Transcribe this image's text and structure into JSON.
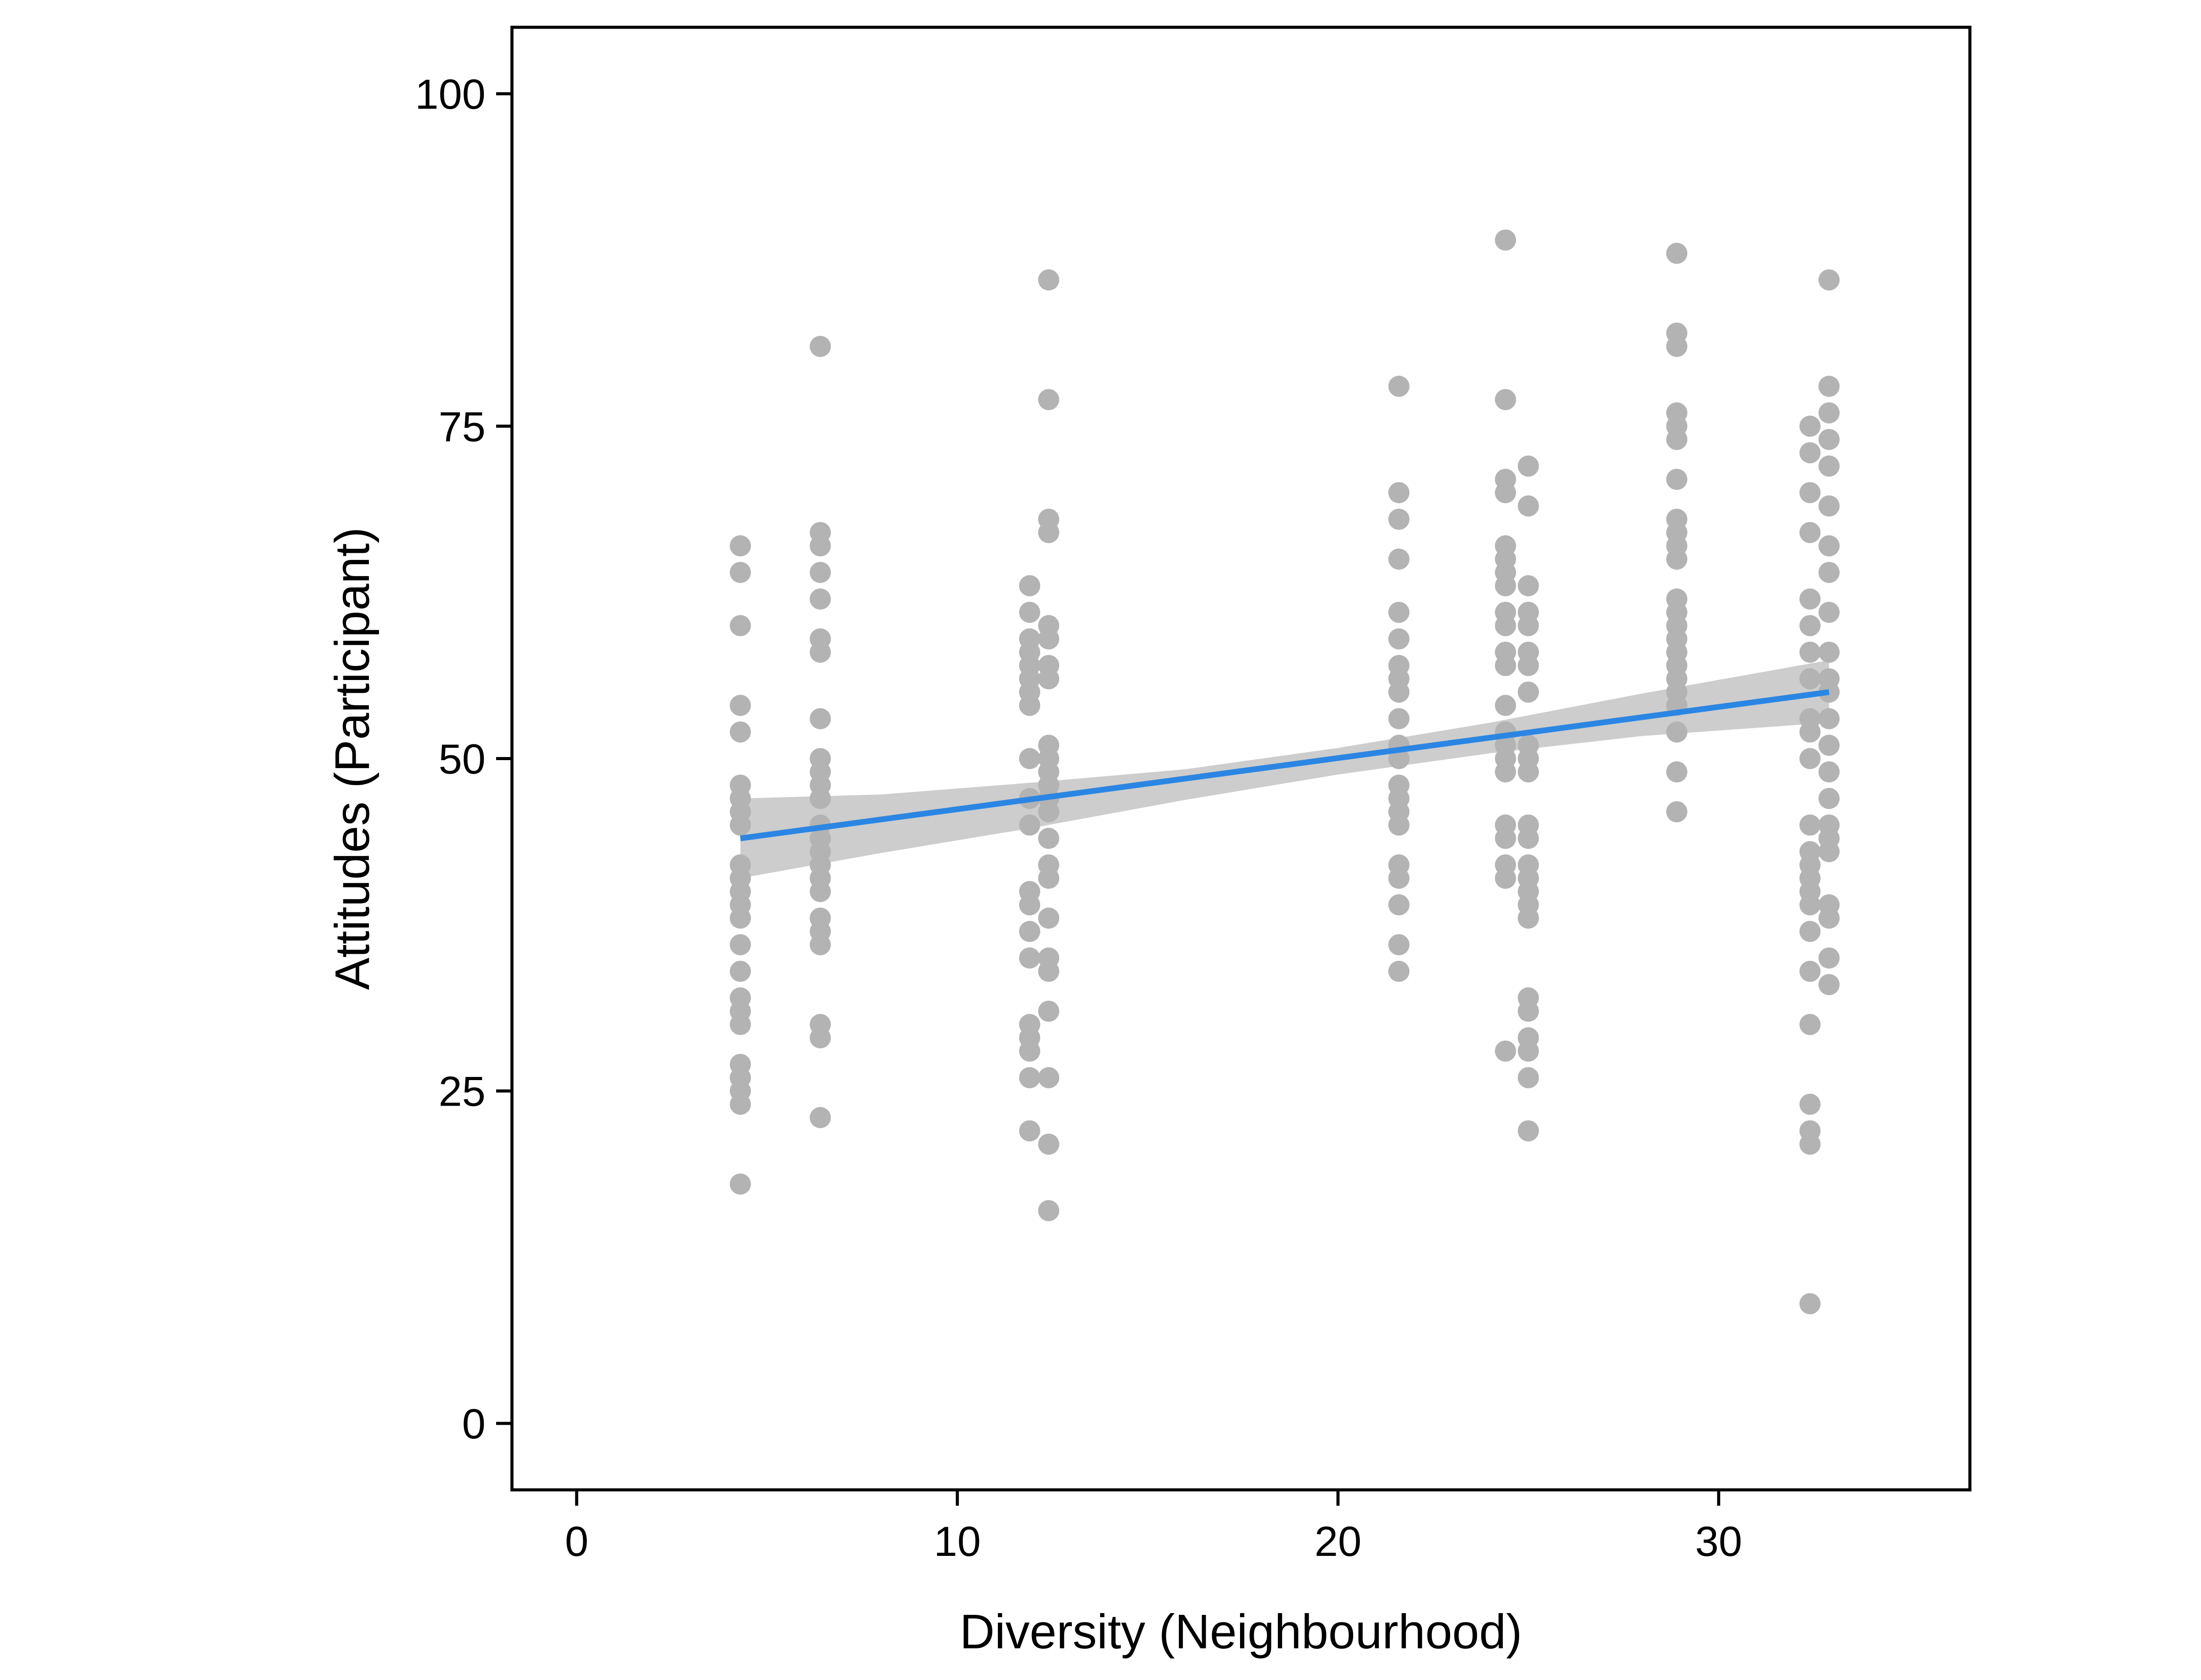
{
  "chart_data": {
    "type": "scatter",
    "title": "",
    "xlabel": "Diversity (Neighbourhood)",
    "ylabel": "Attitudes (Participant)",
    "xlim": [
      -1.7,
      36.6
    ],
    "ylim": [
      -5,
      105
    ],
    "x_ticks": [
      0,
      10,
      20,
      30
    ],
    "x_tick_labels": [
      "0",
      "10",
      "20",
      "30"
    ],
    "y_ticks": [
      0,
      25,
      50,
      75,
      100
    ],
    "y_tick_labels": [
      "0",
      "25",
      "50",
      "75",
      "100"
    ],
    "grid": false,
    "legend": "none",
    "colors": {
      "points": "#b3b3b3",
      "fit_line": "#2b86e3",
      "confidence_band": "#c8c8c8",
      "frame": "#000000"
    },
    "series": [
      {
        "x": 4.3,
        "y": [
          66,
          64,
          60,
          54,
          52,
          48,
          47,
          46,
          45,
          42,
          41,
          40,
          39,
          38,
          36,
          34,
          32,
          31,
          30,
          27,
          26,
          25,
          24,
          18
        ]
      },
      {
        "x": 6.4,
        "y": [
          81,
          67,
          66,
          64,
          62,
          59,
          58,
          53,
          50,
          49,
          48,
          47,
          45,
          44,
          43,
          42,
          41,
          40,
          38,
          37,
          36,
          30,
          29,
          23
        ]
      },
      {
        "x": 11.9,
        "y": [
          63,
          61,
          59,
          58,
          57,
          56,
          55,
          54,
          50,
          47,
          45,
          40,
          39,
          37,
          35,
          30,
          29,
          28,
          26,
          22
        ]
      },
      {
        "x": 12.4,
        "y": [
          86,
          77,
          68,
          67,
          60,
          59,
          57,
          56,
          51,
          50,
          49,
          48,
          47,
          46,
          44,
          42,
          41,
          38,
          35,
          34,
          31,
          26,
          21,
          16
        ]
      },
      {
        "x": 21.6,
        "y": [
          78,
          70,
          68,
          65,
          61,
          59,
          57,
          56,
          55,
          53,
          51,
          50,
          48,
          47,
          46,
          45,
          42,
          41,
          39,
          36,
          34
        ]
      },
      {
        "x": 24.4,
        "y": [
          89,
          77,
          71,
          70,
          66,
          65,
          64,
          63,
          61,
          60,
          58,
          57,
          54,
          52,
          51,
          50,
          49,
          45,
          44,
          42,
          41,
          28
        ]
      },
      {
        "x": 25.0,
        "y": [
          72,
          69,
          63,
          61,
          60,
          58,
          57,
          55,
          51,
          50,
          49,
          45,
          44,
          42,
          41,
          40,
          39,
          38,
          32,
          31,
          29,
          28,
          26,
          22
        ]
      },
      {
        "x": 28.9,
        "y": [
          88,
          82,
          81,
          76,
          75,
          74,
          71,
          68,
          67,
          66,
          65,
          62,
          61,
          60,
          59,
          58,
          57,
          56,
          55,
          54,
          52,
          49,
          46
        ]
      },
      {
        "x": 32.4,
        "y": [
          75,
          73,
          70,
          67,
          62,
          60,
          58,
          56,
          53,
          52,
          50,
          45,
          43,
          42,
          41,
          40,
          39,
          37,
          34,
          30,
          24,
          22,
          21,
          9
        ]
      },
      {
        "x": 32.9,
        "y": [
          86,
          78,
          76,
          74,
          72,
          69,
          66,
          64,
          61,
          58,
          56,
          55,
          53,
          51,
          49,
          47,
          45,
          44,
          43,
          39,
          38,
          35,
          33
        ]
      }
    ],
    "fit_line": {
      "x": [
        4.3,
        32.9
      ],
      "y": [
        44.0,
        55.0
      ]
    },
    "confidence_band": {
      "x": [
        4.3,
        8.0,
        12.0,
        16.0,
        20.0,
        24.0,
        28.0,
        32.9
      ],
      "lower": [
        41.0,
        42.9,
        44.8,
        46.9,
        48.8,
        50.4,
        51.7,
        52.7
      ],
      "upper": [
        47.0,
        47.3,
        48.2,
        49.2,
        50.8,
        52.7,
        54.9,
        57.4
      ]
    }
  }
}
